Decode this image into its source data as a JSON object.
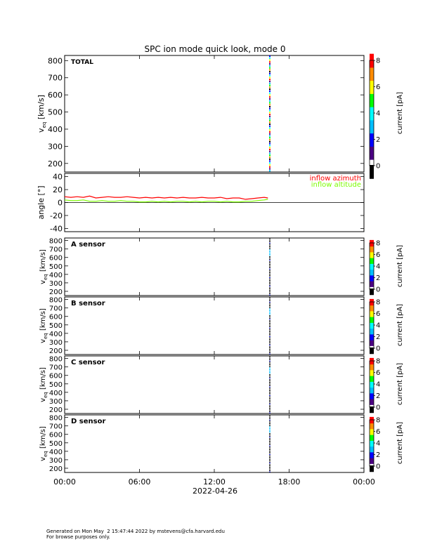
{
  "title": "SPC ion mode quick look, mode 0",
  "footer": {
    "line1": "Generated on Mon May  2 15:47:44 2022 by mstevens@cfa.harvard.edu",
    "line2": "For browse purposes only."
  },
  "colors": {
    "azimuth": "#ff0000",
    "altitude": "#7cfc00",
    "colormap": [
      "#000000",
      "#4b0082",
      "#0000ff",
      "#00bfff",
      "#00ffff",
      "#00ff00",
      "#ffff00",
      "#ff8c00",
      "#ff0000"
    ]
  },
  "chart_data": [
    {
      "type": "heatmap",
      "panel": "total",
      "label": "TOTAL",
      "ylabel": "v_eq [km/s]",
      "ylabel_main": "v",
      "ylabel_sub": "eq",
      "ylabel_unit": " [km/s]",
      "ylim": [
        150,
        830
      ],
      "yticks": [
        200,
        300,
        400,
        500,
        600,
        700,
        800
      ],
      "xlabel": "2022-04-26",
      "x_tick_labels": [
        "00:00",
        "06:00",
        "12:00",
        "18:00",
        "00:00"
      ],
      "x_tick_hours": [
        0,
        6,
        12,
        18,
        24
      ],
      "data_time_hour": 16.45,
      "colorbar": {
        "label": "current [pA]",
        "range": [
          0,
          8
        ],
        "ticks": [
          0,
          2,
          4,
          6,
          8
        ]
      }
    },
    {
      "type": "line",
      "panel": "angle",
      "ylabel": "angle [°]",
      "ylim": [
        -45,
        45
      ],
      "yticks": [
        -40,
        -20,
        0,
        20,
        40
      ],
      "series": [
        {
          "name": "inflow azimuth",
          "color": "#ff0000",
          "x_hours": [
            0,
            0.5,
            1,
            1.5,
            2,
            2.5,
            3,
            3.5,
            4,
            4.5,
            5,
            5.5,
            6,
            6.5,
            7,
            7.5,
            8,
            8.5,
            9,
            9.5,
            10,
            10.5,
            11,
            11.5,
            12,
            12.5,
            13,
            13.5,
            14,
            14.5,
            15,
            15.5,
            16,
            16.3
          ],
          "values": [
            9,
            8,
            9,
            8,
            10,
            7,
            8,
            9,
            8,
            8,
            9,
            8,
            7,
            8,
            7,
            8,
            7,
            8,
            7,
            8,
            7,
            7,
            8,
            7,
            7,
            8,
            6,
            7,
            7,
            5,
            6,
            7,
            8,
            7
          ]
        },
        {
          "name": "inflow altitude",
          "color": "#7cfc00",
          "x_hours": [
            0,
            0.5,
            1,
            1.5,
            2,
            2.5,
            3,
            3.5,
            4,
            4.5,
            5,
            5.5,
            6,
            6.5,
            7,
            7.5,
            8,
            8.5,
            9,
            9.5,
            10,
            10.5,
            11,
            11.5,
            12,
            12.5,
            13,
            13.5,
            14,
            14.5,
            15,
            15.5,
            16,
            16.3
          ],
          "values": [
            4,
            3,
            3,
            4,
            2,
            2,
            3,
            2,
            2,
            3,
            2,
            2,
            1,
            1,
            2,
            1,
            2,
            1,
            2,
            2,
            1,
            2,
            1,
            2,
            2,
            1,
            2,
            1,
            1,
            2,
            2,
            3,
            4,
            5
          ]
        }
      ],
      "zero_line": 0
    },
    {
      "type": "heatmap",
      "panel": "A",
      "label": "A sensor",
      "ylabel_main": "v",
      "ylabel_sub": "eq",
      "ylabel_unit": " [km/s]",
      "ylim": [
        150,
        830
      ],
      "yticks": [
        200,
        300,
        400,
        500,
        600,
        700,
        800
      ],
      "data_time_hour": 16.45,
      "colorbar": {
        "label": "current [pA]",
        "range": [
          0,
          8
        ],
        "ticks": [
          0,
          2,
          4,
          6,
          8
        ]
      }
    },
    {
      "type": "heatmap",
      "panel": "B",
      "label": "B sensor",
      "ylabel_main": "v",
      "ylabel_sub": "eq",
      "ylabel_unit": " [km/s]",
      "ylim": [
        150,
        830
      ],
      "yticks": [
        200,
        300,
        400,
        500,
        600,
        700,
        800
      ],
      "data_time_hour": 16.45,
      "colorbar": {
        "label": "current [pA]",
        "range": [
          0,
          8
        ],
        "ticks": [
          0,
          2,
          4,
          6,
          8
        ]
      }
    },
    {
      "type": "heatmap",
      "panel": "C",
      "label": "C sensor",
      "ylabel_main": "v",
      "ylabel_sub": "eq",
      "ylabel_unit": " [km/s]",
      "ylim": [
        150,
        830
      ],
      "yticks": [
        200,
        300,
        400,
        500,
        600,
        700,
        800
      ],
      "data_time_hour": 16.45,
      "colorbar": {
        "label": "current [pA]",
        "range": [
          0,
          8
        ],
        "ticks": [
          0,
          2,
          4,
          6,
          8
        ]
      }
    },
    {
      "type": "heatmap",
      "panel": "D",
      "label": "D sensor",
      "ylabel_main": "v",
      "ylabel_sub": "eq",
      "ylabel_unit": " [km/s]",
      "ylim": [
        150,
        830
      ],
      "yticks": [
        200,
        300,
        400,
        500,
        600,
        700,
        800
      ],
      "data_time_hour": 16.45,
      "colorbar": {
        "label": "current [pA]",
        "range": [
          0,
          8
        ],
        "ticks": [
          0,
          2,
          4,
          6,
          8
        ]
      }
    }
  ]
}
